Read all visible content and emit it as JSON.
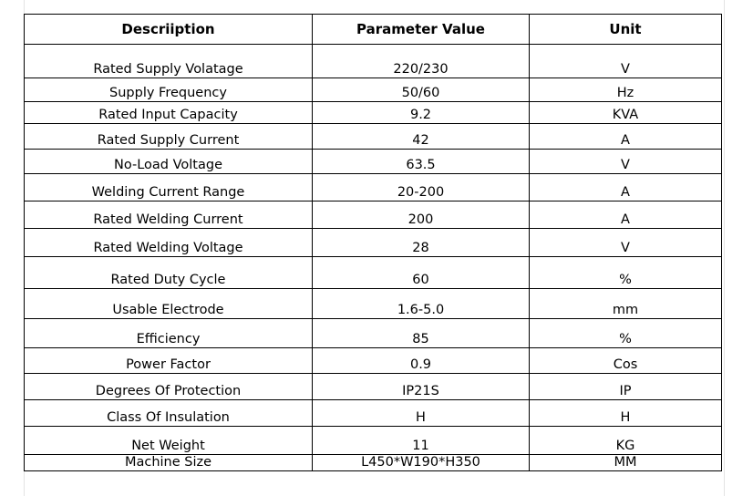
{
  "table": {
    "headers": [
      "Descriiption",
      "Parameter Value",
      "Unit"
    ],
    "rows": [
      {
        "description": "Rated Supply Volatage",
        "value": "220/230",
        "unit": "V"
      },
      {
        "description": "Supply Frequency",
        "value": "50/60",
        "unit": "Hz"
      },
      {
        "description": "Rated Input Capacity",
        "value": "9.2",
        "unit": "KVA"
      },
      {
        "description": "Rated Supply Current",
        "value": "42",
        "unit": "A"
      },
      {
        "description": "No-Load Voltage",
        "value": "63.5",
        "unit": "V"
      },
      {
        "description": "Welding Current Range",
        "value": "20-200",
        "unit": "A"
      },
      {
        "description": "Rated Welding Current",
        "value": "200",
        "unit": "A"
      },
      {
        "description": "Rated Welding Voltage",
        "value": "28",
        "unit": "V"
      },
      {
        "description": "Rated Duty Cycle",
        "value": "60",
        "unit": "%"
      },
      {
        "description": "Usable Electrode",
        "value": "1.6-5.0",
        "unit": "mm"
      },
      {
        "description": "Efficiency",
        "value": "85",
        "unit": "%"
      },
      {
        "description": "Power Factor",
        "value": "0.9",
        "unit": "Cos"
      },
      {
        "description": "Degrees Of Protection",
        "value": "IP21S",
        "unit": "IP"
      },
      {
        "description": "Class Of Insulation",
        "value": "H",
        "unit": "H"
      },
      {
        "description": "Net Weight",
        "value": "11",
        "unit": "KG"
      },
      {
        "description": "Machine Size",
        "value": "L450*W190*H350",
        "unit": "MM"
      }
    ]
  }
}
